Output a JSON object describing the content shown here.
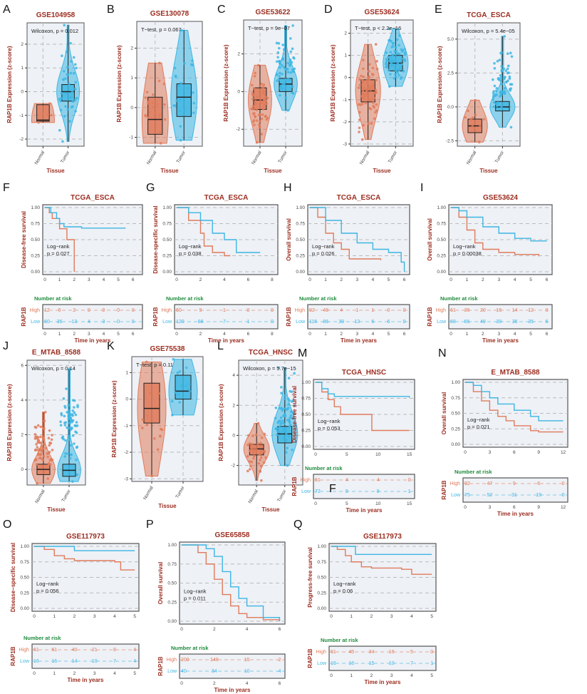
{
  "colors": {
    "normal": "#E07B5B",
    "tumor": "#3DB6E3",
    "high": "#E07B5B",
    "low": "#3DB6E3",
    "title": "#9B2D20",
    "risk_header": "#1E8B3C",
    "panel_bg": "#EEF1F6"
  },
  "common": {
    "box_ylabel": "RAP1B Expression (z-score)",
    "box_xlabel": "Tissue",
    "groups": [
      "Normal",
      "Tumor"
    ],
    "km_xlabel": "Time in years",
    "number_at_risk": "Number at risk",
    "strata_label": "RAP1B",
    "high": "High",
    "low": "Low",
    "logrank": "Log−rank",
    "stray_letter": "F"
  },
  "chart_data": [
    {
      "panel": "A",
      "type": "box",
      "title": "GSE104958",
      "stat": "Wilcoxon, p = 0.012",
      "ylim": [
        -2.3,
        2.9
      ],
      "yticks": [
        -2,
        -1,
        0,
        1,
        2
      ],
      "groups": [
        {
          "name": "Normal",
          "lo": -1.3,
          "q1": -1.25,
          "median": -1.2,
          "q3": -0.55,
          "hi": -0.5,
          "n": 6
        },
        {
          "name": "Tumor",
          "lo": -2.1,
          "q1": -0.4,
          "median": 0.0,
          "q3": 0.3,
          "hi": 2.8,
          "n": 40
        }
      ]
    },
    {
      "panel": "B",
      "type": "box",
      "title": "GSE130078",
      "stat": "T−test, p = 0.067",
      "ylim": [
        -1.3,
        2.9
      ],
      "yticks": [
        -1,
        0,
        1,
        2
      ],
      "groups": [
        {
          "name": "Normal",
          "lo": -1.2,
          "q1": -0.9,
          "median": -0.4,
          "q3": 0.35,
          "hi": 1.5,
          "n": 23
        },
        {
          "name": "Tumor",
          "lo": -1.1,
          "q1": -0.3,
          "median": 0.35,
          "q3": 0.8,
          "hi": 2.6,
          "n": 23
        }
      ]
    },
    {
      "panel": "C",
      "type": "box",
      "title": "GSE53622",
      "stat": "T−test, p = 9e−07",
      "ylim": [
        -2.9,
        3.8
      ],
      "yticks": [
        -2,
        0,
        2
      ],
      "groups": [
        {
          "name": "Normal",
          "lo": -2.7,
          "q1": -0.95,
          "median": -0.45,
          "q3": 0.2,
          "hi": 1.4,
          "n": 60
        },
        {
          "name": "Tumor",
          "lo": -1.0,
          "q1": 0.0,
          "median": 0.4,
          "q3": 0.7,
          "hi": 3.5,
          "n": 60
        }
      ]
    },
    {
      "panel": "D",
      "type": "box",
      "title": "GSE53624",
      "stat": "T−test, p < 2.2e−16",
      "ylim": [
        -3.1,
        2.6
      ],
      "yticks": [
        -3,
        -2,
        -1,
        0,
        1,
        2
      ],
      "groups": [
        {
          "name": "Normal",
          "lo": -2.8,
          "q1": -1.1,
          "median": -0.6,
          "q3": -0.1,
          "hi": 1.5,
          "n": 119
        },
        {
          "name": "Tumor",
          "lo": -0.4,
          "q1": 0.3,
          "median": 0.65,
          "q3": 1.0,
          "hi": 2.2,
          "n": 119
        }
      ]
    },
    {
      "panel": "E",
      "type": "box",
      "title": "TCGA_ESCA",
      "stat": "Wilcoxon, p = 5.4e−05",
      "ylim": [
        -2.9,
        6.2
      ],
      "yticks": [
        -2.5,
        0.0,
        2.5,
        5.0
      ],
      "ytick_labels": [
        "-2.5",
        "0.0",
        "2.5",
        "5.0"
      ],
      "groups": [
        {
          "name": "Normal",
          "lo": -2.6,
          "q1": -1.9,
          "median": -1.4,
          "q3": -0.9,
          "hi": 0.5,
          "n": 11
        },
        {
          "name": "Tumor",
          "lo": -1.5,
          "q1": -0.3,
          "median": 0.0,
          "q3": 0.4,
          "hi": 5.2,
          "n": 160
        }
      ]
    },
    {
      "panel": "F",
      "type": "km",
      "title": "TCGA_ESCA",
      "ylabel": "Disease-free survival",
      "p": "p = 0.027",
      "xmax": 6.5,
      "xticks": [
        0,
        1,
        2,
        3,
        4,
        5,
        6
      ],
      "high": [
        [
          0,
          1
        ],
        [
          0.3,
          0.92
        ],
        [
          0.5,
          0.83
        ],
        [
          1,
          0.67
        ],
        [
          1.5,
          0.5
        ],
        [
          2,
          0
        ]
      ],
      "low": [
        [
          0,
          1
        ],
        [
          0.4,
          0.92
        ],
        [
          0.8,
          0.83
        ],
        [
          1,
          0.75
        ],
        [
          1.3,
          0.7
        ],
        [
          2.5,
          0.68
        ],
        [
          5.5,
          0.68
        ]
      ],
      "risk_high": [
        12,
        6,
        2,
        0,
        0,
        0,
        0
      ],
      "risk_low": [
        60,
        36,
        13,
        4,
        3,
        0,
        0
      ]
    },
    {
      "panel": "G",
      "type": "km",
      "title": "TCGA_ESCA",
      "ylabel": "Disease-specific survival",
      "p": "p = 0.038",
      "xmax": 8.3,
      "xticks": [
        0,
        2,
        4,
        6,
        8
      ],
      "high": [
        [
          0,
          1
        ],
        [
          1,
          0.8
        ],
        [
          2,
          0.6
        ],
        [
          2.3,
          0.4
        ],
        [
          3,
          0.3
        ],
        [
          4,
          0.25
        ],
        [
          4.5,
          0.25
        ]
      ],
      "low": [
        [
          0,
          1
        ],
        [
          1,
          0.92
        ],
        [
          2,
          0.8
        ],
        [
          3,
          0.6
        ],
        [
          4,
          0.5
        ],
        [
          5,
          0.3
        ],
        [
          7,
          0.3
        ]
      ],
      "risk_high": [
        60,
        9,
        1,
        0,
        0
      ],
      "risk_low": [
        120,
        88,
        7,
        1,
        0
      ]
    },
    {
      "panel": "H",
      "type": "km",
      "title": "TCGA_ESCA",
      "ylabel": "Overall survival",
      "p": "p = 0.026",
      "xmax": 6.2,
      "xticks": [
        0,
        1,
        2,
        3,
        4,
        5,
        6
      ],
      "high": [
        [
          0,
          1
        ],
        [
          0.5,
          0.85
        ],
        [
          1,
          0.6
        ],
        [
          1.5,
          0.45
        ],
        [
          2,
          0.35
        ],
        [
          2.5,
          0.2
        ],
        [
          4.5,
          0.18
        ]
      ],
      "low": [
        [
          0,
          1
        ],
        [
          1,
          0.8
        ],
        [
          2,
          0.6
        ],
        [
          3,
          0.45
        ],
        [
          4,
          0.35
        ],
        [
          5,
          0.3
        ],
        [
          5.8,
          0.15
        ],
        [
          6,
          0
        ]
      ],
      "risk_high": [
        92,
        48,
        4,
        1,
        1,
        0,
        0
      ],
      "risk_low": [
        115,
        86,
        39,
        13,
        6,
        6,
        0
      ]
    },
    {
      "panel": "I",
      "type": "km",
      "title": "GSE53624",
      "ylabel": "Overall survival",
      "p": "p = 0.00038",
      "xmax": 6.2,
      "xticks": [
        0,
        1,
        2,
        3,
        4,
        5,
        6
      ],
      "high": [
        [
          0,
          1
        ],
        [
          0.5,
          0.85
        ],
        [
          1,
          0.65
        ],
        [
          1.5,
          0.45
        ],
        [
          2,
          0.35
        ],
        [
          3,
          0.3
        ],
        [
          4,
          0.27
        ],
        [
          5.5,
          0.24
        ]
      ],
      "low": [
        [
          0,
          1
        ],
        [
          0.5,
          0.95
        ],
        [
          1,
          0.85
        ],
        [
          2,
          0.7
        ],
        [
          3,
          0.6
        ],
        [
          4,
          0.52
        ],
        [
          5,
          0.48
        ],
        [
          6,
          0.48
        ]
      ],
      "risk_high": [
        61,
        36,
        20,
        16,
        14,
        12,
        0
      ],
      "risk_low": [
        68,
        66,
        49,
        39,
        36,
        35,
        6
      ]
    },
    {
      "panel": "J",
      "type": "box",
      "title": "E_MTAB_8588",
      "stat": "Wilcoxon, p = 0.14",
      "ylim": [
        -0.9,
        6.3
      ],
      "yticks": [
        0,
        2,
        4,
        6
      ],
      "groups": [
        {
          "name": "Normal",
          "lo": -0.8,
          "q1": -0.3,
          "median": 0.0,
          "q3": 0.3,
          "hi": 3.3,
          "n": 80
        },
        {
          "name": "Tumor",
          "lo": -0.7,
          "q1": -0.4,
          "median": -0.05,
          "q3": 0.3,
          "hi": 5.8,
          "n": 160
        }
      ]
    },
    {
      "panel": "K",
      "type": "box",
      "title": "GSE75538",
      "stat": "T−test, p = 0.11",
      "ylim": [
        -3.1,
        1.6
      ],
      "yticks": [
        -3,
        -2,
        -1,
        0,
        1
      ],
      "groups": [
        {
          "name": "Normal",
          "lo": -2.9,
          "q1": -0.9,
          "median": -0.35,
          "q3": 0.6,
          "hi": 1.4,
          "n": 14
        },
        {
          "name": "Tumor",
          "lo": -0.6,
          "q1": 0.0,
          "median": 0.3,
          "q3": 0.9,
          "hi": 1.5,
          "n": 14
        }
      ]
    },
    {
      "panel": "L",
      "type": "box",
      "title": "TCGA_HNSC",
      "stat": "Wilcoxon, p = 5.7e−15",
      "ylim": [
        -3.3,
        5
      ],
      "yticks": [
        -2,
        0,
        2,
        4
      ],
      "groups": [
        {
          "name": "Normal",
          "lo": -3.0,
          "q1": -1.3,
          "median": -0.9,
          "q3": -0.6,
          "hi": 0.8,
          "n": 44
        },
        {
          "name": "Tumor",
          "lo": -2.0,
          "q1": -0.5,
          "median": 0.1,
          "q3": 0.6,
          "hi": 4.5,
          "n": 300
        }
      ]
    },
    {
      "panel": "M",
      "type": "km",
      "title": "TCGA_HNSC",
      "ylabel": "Disease-free survival",
      "p": "p = 0.053",
      "xmax": 15.5,
      "xticks": [
        0,
        5,
        10,
        15
      ],
      "high": [
        [
          0,
          1
        ],
        [
          1,
          0.85
        ],
        [
          2,
          0.73
        ],
        [
          3,
          0.62
        ],
        [
          4,
          0.5
        ],
        [
          9,
          0.25
        ],
        [
          15,
          0.25
        ]
      ],
      "low": [
        [
          0,
          1
        ],
        [
          1,
          0.9
        ],
        [
          2,
          0.82
        ],
        [
          3,
          0.78
        ],
        [
          15,
          0.76
        ]
      ],
      "risk_high": [
        61,
        4,
        4,
        0
      ],
      "risk_low": [
        72,
        9,
        8,
        1
      ]
    },
    {
      "panel": "N",
      "type": "km",
      "title": "E_MTAB_8588",
      "ylabel": "Overall survival",
      "p": "p = 0.021",
      "xmax": 12.3,
      "xticks": [
        0,
        3,
        6,
        9,
        12
      ],
      "high": [
        [
          0,
          1
        ],
        [
          1,
          0.85
        ],
        [
          2,
          0.7
        ],
        [
          3,
          0.55
        ],
        [
          4,
          0.45
        ],
        [
          5,
          0.38
        ],
        [
          6,
          0.3
        ],
        [
          8,
          0.22
        ],
        [
          9,
          0.2
        ],
        [
          12,
          0.2
        ]
      ],
      "low": [
        [
          0,
          1
        ],
        [
          1,
          0.95
        ],
        [
          2,
          0.85
        ],
        [
          3,
          0.75
        ],
        [
          4,
          0.65
        ],
        [
          6,
          0.55
        ],
        [
          8,
          0.45
        ],
        [
          9,
          0.38
        ],
        [
          12,
          0.38
        ]
      ],
      "risk_high": [
        92,
        47,
        9,
        6,
        0
      ],
      "risk_low": [
        75,
        52,
        31,
        19,
        0
      ]
    },
    {
      "panel": "O",
      "type": "km",
      "title": "GSE117973",
      "ylabel": "Disease−specific survival",
      "p": "p = 0.056",
      "xmax": 5.1,
      "xticks": [
        0,
        1,
        2,
        3,
        4,
        5
      ],
      "high": [
        [
          0,
          1
        ],
        [
          0.5,
          0.95
        ],
        [
          1,
          0.85
        ],
        [
          1.5,
          0.8
        ],
        [
          2,
          0.77
        ],
        [
          4,
          0.75
        ],
        [
          4.3,
          0.62
        ],
        [
          5,
          0.62
        ]
      ],
      "low": [
        [
          0,
          1
        ],
        [
          1.7,
          1
        ],
        [
          2,
          0.93
        ],
        [
          5,
          0.93
        ]
      ],
      "risk_high": [
        61,
        61,
        40,
        21,
        8,
        4
      ],
      "risk_low": [
        16,
        16,
        14,
        10,
        7,
        4
      ]
    },
    {
      "panel": "P",
      "type": "km",
      "title": "GSE65858",
      "ylabel": "Overall survival",
      "p": "p = 0.011",
      "xmax": 6.2,
      "xticks": [
        0,
        2,
        4,
        6
      ],
      "high": [
        [
          0,
          1
        ],
        [
          1,
          0.9
        ],
        [
          1.5,
          0.75
        ],
        [
          2,
          0.55
        ],
        [
          2.5,
          0.35
        ],
        [
          3,
          0.2
        ],
        [
          3.5,
          0.1
        ],
        [
          4,
          0.05
        ],
        [
          5,
          0.02
        ],
        [
          6,
          0
        ]
      ],
      "low": [
        [
          0,
          1
        ],
        [
          1.5,
          0.95
        ],
        [
          2,
          0.85
        ],
        [
          2.5,
          0.65
        ],
        [
          3,
          0.45
        ],
        [
          3.5,
          0.3
        ],
        [
          4,
          0.2
        ],
        [
          5,
          0.05
        ],
        [
          6,
          0
        ]
      ],
      "risk_high": [
        200,
        148,
        15,
        2
      ],
      "risk_low": [
        40,
        34,
        10,
        4
      ]
    },
    {
      "panel": "Q",
      "type": "km",
      "title": "GSE117973",
      "ylabel": "Progress-free survival",
      "p": "p = 0.06",
      "xmax": 5.1,
      "xticks": [
        0,
        1,
        2,
        3,
        4,
        5
      ],
      "high": [
        [
          0,
          1
        ],
        [
          0.3,
          0.95
        ],
        [
          0.7,
          0.85
        ],
        [
          1,
          0.75
        ],
        [
          1.5,
          0.67
        ],
        [
          2,
          0.65
        ],
        [
          3.5,
          0.63
        ],
        [
          4,
          0.55
        ],
        [
          5,
          0.55
        ]
      ],
      "low": [
        [
          0,
          1
        ],
        [
          1,
          1
        ],
        [
          1.2,
          0.87
        ],
        [
          5,
          0.87
        ]
      ],
      "risk_high": [
        61,
        45,
        34,
        16,
        5,
        0
      ],
      "risk_low": [
        16,
        16,
        15,
        10,
        7,
        1
      ]
    }
  ]
}
